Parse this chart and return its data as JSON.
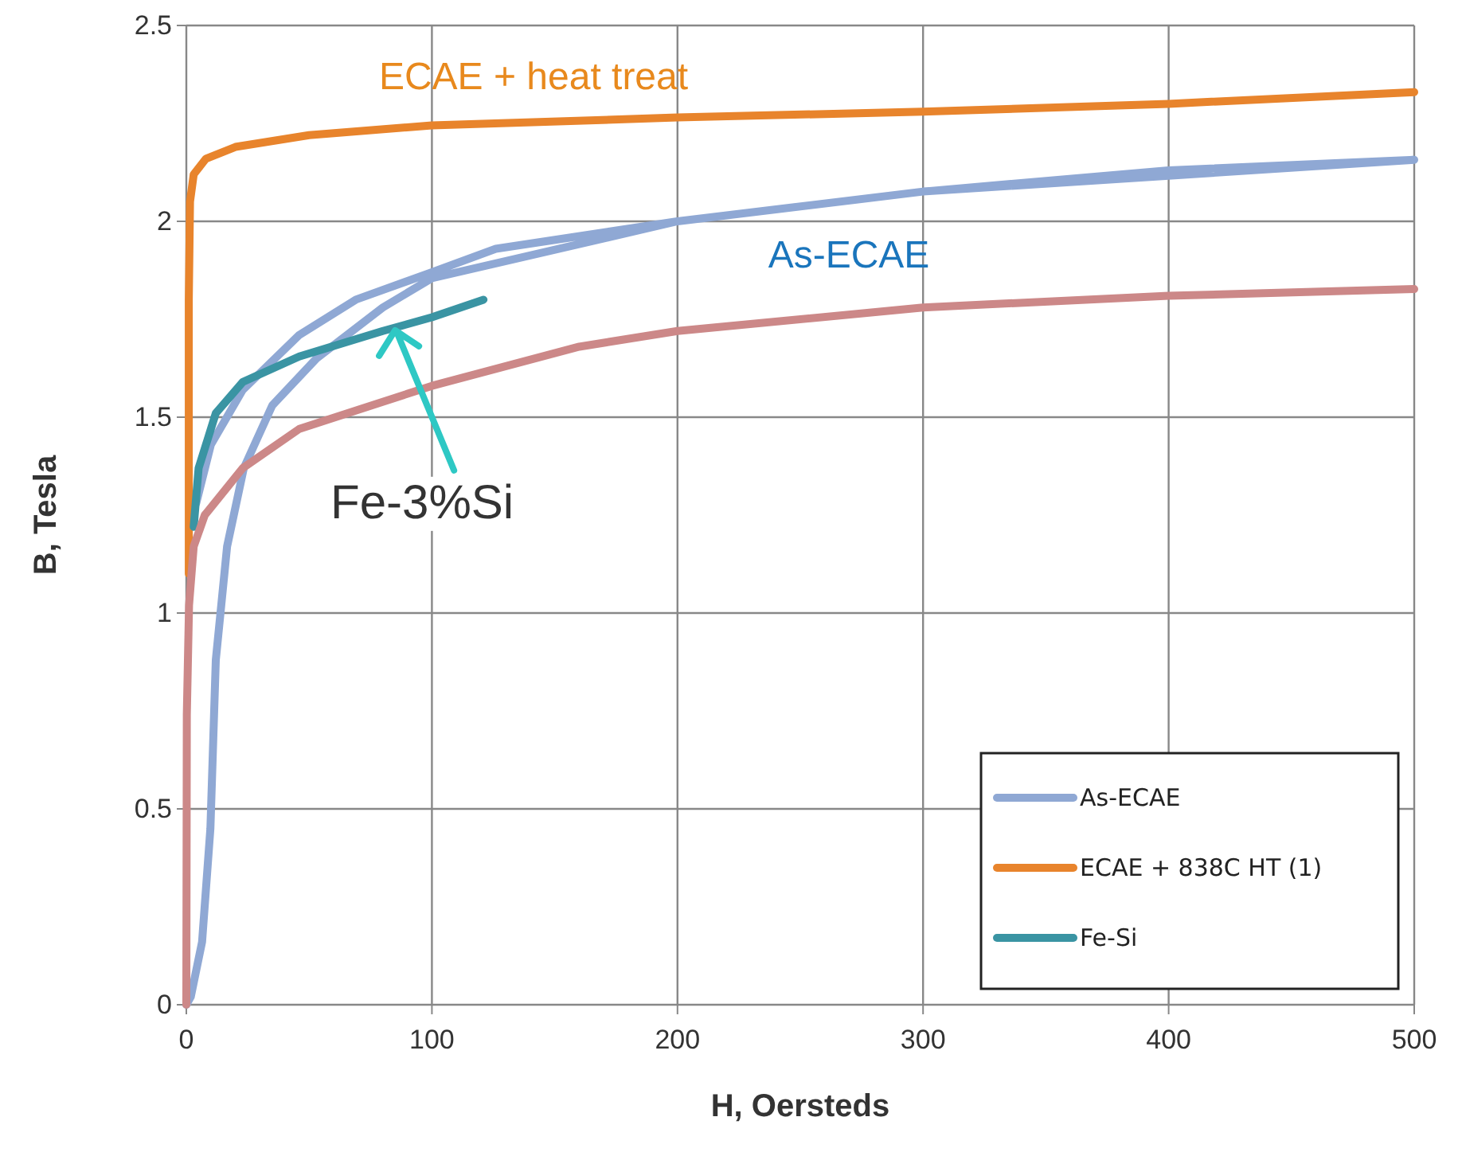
{
  "chart_data": {
    "type": "line",
    "xlabel": "H, Oersteds",
    "ylabel": "B, Tesla",
    "xlim": [
      0,
      500
    ],
    "xticks": [
      0,
      100,
      200,
      300,
      400,
      500
    ],
    "ylim": [
      0,
      2.5
    ],
    "yticks": [
      0,
      0.5,
      1,
      1.5,
      2,
      2.5
    ],
    "grid": true,
    "legend": "bottom right",
    "line_style": "solid",
    "marker": "none",
    "series": [
      {
        "name": "As-ECAE",
        "color": "#8fa8d4",
        "x": [
          0,
          1.8,
          6.4,
          9.8,
          12,
          16.6,
          23.4,
          35,
          53,
          80,
          100,
          200,
          300,
          400,
          500,
          300,
          200,
          126,
          100,
          69,
          46,
          23,
          10,
          4
        ],
        "values": [
          0,
          0.02,
          0.16,
          0.45,
          0.88,
          1.17,
          1.37,
          1.53,
          1.65,
          1.78,
          1.855,
          2.0,
          2.076,
          2.13,
          2.157,
          2.076,
          2.0,
          1.93,
          1.87,
          1.8,
          1.71,
          1.57,
          1.43,
          1.28
        ]
      },
      {
        "name": "ECAE + 838C HT (1)",
        "color": "#e8842c",
        "x": [
          1,
          1,
          1.5,
          3,
          8,
          20,
          50,
          100,
          200,
          300,
          400,
          500
        ],
        "values": [
          1.1,
          1.8,
          2.05,
          2.12,
          2.16,
          2.19,
          2.22,
          2.245,
          2.265,
          2.28,
          2.3,
          2.33
        ]
      },
      {
        "name": "Fe-Si",
        "color": "#3a94a3",
        "x": [
          3,
          5,
          12,
          23,
          46,
          80,
          100,
          121
        ],
        "values": [
          1.22,
          1.37,
          1.51,
          1.59,
          1.655,
          1.72,
          1.755,
          1.8
        ]
      },
      {
        "color": "#cc8888",
        "x": [
          0,
          0.2,
          1.1,
          3,
          7.5,
          23,
          46,
          100,
          160,
          200,
          300,
          400,
          500
        ],
        "values": [
          0,
          0.74,
          1.02,
          1.17,
          1.25,
          1.37,
          1.47,
          1.58,
          1.68,
          1.72,
          1.78,
          1.81,
          1.827
        ]
      }
    ],
    "annotations": [
      "ECAE + heat treat",
      "As-ECAE",
      {
        "text": "Fe-3%Si",
        "x": 85,
        "y": 1.73
      }
    ]
  }
}
